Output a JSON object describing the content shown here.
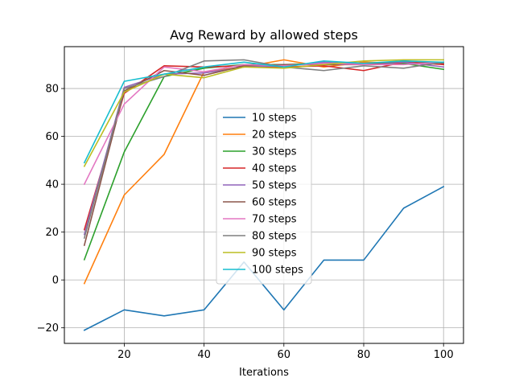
{
  "chart_data": {
    "type": "line",
    "title": "Avg Reward by allowed steps",
    "xlabel": "Iterations",
    "ylabel": "",
    "xlim": [
      5,
      105
    ],
    "ylim": [
      -26.5,
      97.5
    ],
    "xticks": [
      20,
      40,
      60,
      80,
      100
    ],
    "yticks": [
      -20,
      0,
      20,
      40,
      60,
      80
    ],
    "ytick_labels": [
      "−20",
      "0",
      "20",
      "40",
      "60",
      "80"
    ],
    "grid": true,
    "legend_position": "center",
    "x": [
      10,
      20,
      30,
      40,
      50,
      60,
      70,
      80,
      90,
      100
    ],
    "series": [
      {
        "name": "10 steps",
        "color": "#1f77b4",
        "values": [
          -21,
          -12.5,
          -15,
          -12.5,
          7.5,
          -12.5,
          8.3,
          8.3,
          30,
          39
        ]
      },
      {
        "name": "20 steps",
        "color": "#ff7f0e",
        "values": [
          -1.5,
          35.5,
          52.5,
          87,
          89,
          92,
          89,
          91,
          90.5,
          91
        ]
      },
      {
        "name": "30 steps",
        "color": "#2ca02c",
        "values": [
          8.5,
          53.5,
          85,
          88.5,
          90,
          90,
          90.5,
          90.5,
          90.5,
          88
        ]
      },
      {
        "name": "40 steps",
        "color": "#d62728",
        "values": [
          21,
          78,
          89.5,
          89,
          89.5,
          89,
          89.5,
          87.5,
          91,
          90
        ]
      },
      {
        "name": "50 steps",
        "color": "#9467bd",
        "values": [
          19,
          80.5,
          86,
          86.5,
          89,
          89.5,
          91,
          90,
          91,
          89
        ]
      },
      {
        "name": "60 steps",
        "color": "#8c564b",
        "values": [
          14.5,
          79,
          87.5,
          85.5,
          89.5,
          90,
          90,
          90,
          91.5,
          90.5
        ]
      },
      {
        "name": "70 steps",
        "color": "#e377c2",
        "values": [
          40,
          73.5,
          89,
          87,
          90,
          89.5,
          90.5,
          90,
          90,
          91
        ]
      },
      {
        "name": "80 steps",
        "color": "#7f7f7f",
        "values": [
          17.5,
          80,
          85,
          91.5,
          92,
          89,
          87.5,
          89.5,
          88.5,
          91
        ]
      },
      {
        "name": "90 steps",
        "color": "#bcbd22",
        "values": [
          47.5,
          78.5,
          86,
          84.5,
          89,
          88.5,
          90,
          91.5,
          92,
          92
        ]
      },
      {
        "name": "100 steps",
        "color": "#17becf",
        "values": [
          49,
          83,
          86,
          89,
          91,
          89,
          91.5,
          90.5,
          91.5,
          91
        ]
      }
    ]
  }
}
